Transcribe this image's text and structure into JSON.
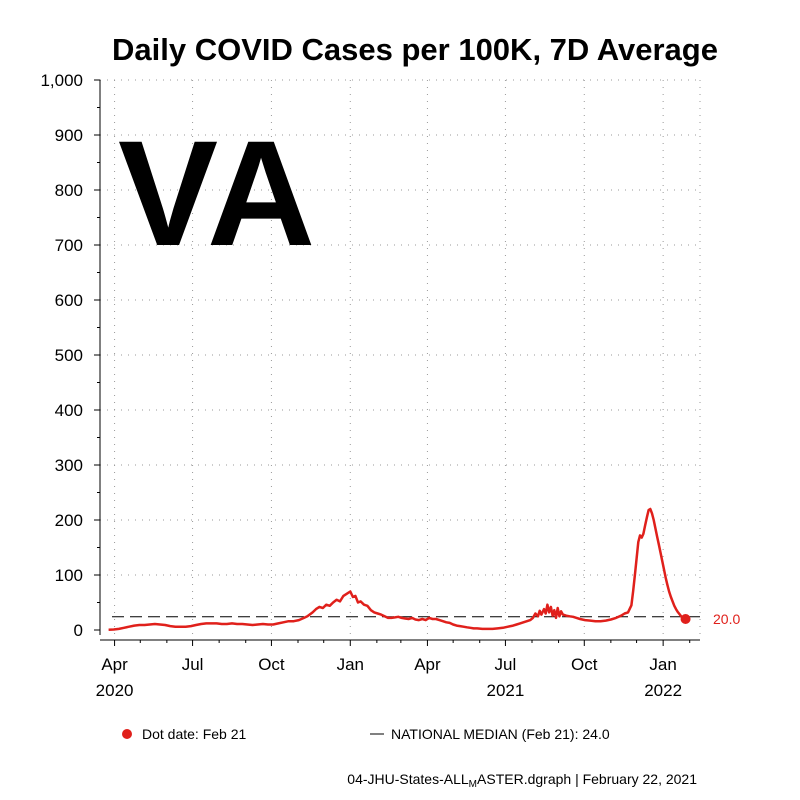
{
  "colors": {
    "series": "#e0201b",
    "axis": "#000000",
    "grid": "#9a9a9a"
  },
  "chart_data": {
    "type": "line",
    "title": "Daily COVID Cases per 100K, 7D Average",
    "state_label": "VA",
    "ylim": [
      0,
      1000
    ],
    "y_ticks": [
      0,
      100,
      200,
      300,
      400,
      500,
      600,
      700,
      800,
      900,
      1000
    ],
    "y_tick_labels": [
      "0",
      "100",
      "200",
      "300",
      "400",
      "500",
      "600",
      "700",
      "800",
      "900",
      "1,000"
    ],
    "x_domain_days": [
      0,
      700
    ],
    "x_ticks": [
      {
        "day": 17,
        "label": "Apr",
        "year": "2020"
      },
      {
        "day": 108,
        "label": "Jul",
        "year": ""
      },
      {
        "day": 200,
        "label": "Oct",
        "year": ""
      },
      {
        "day": 292,
        "label": "Jan",
        "year": ""
      },
      {
        "day": 382,
        "label": "Apr",
        "year": ""
      },
      {
        "day": 473,
        "label": "Jul",
        "year": "2021"
      },
      {
        "day": 565,
        "label": "Oct",
        "year": ""
      },
      {
        "day": 657,
        "label": "Jan",
        "year": "2022"
      }
    ],
    "minor_x_ticks": [
      47,
      78,
      139,
      170,
      231,
      261,
      323,
      351,
      412,
      443,
      504,
      535,
      596,
      626,
      688
    ],
    "national_median": 24.0,
    "last_value": 20.0,
    "last_value_label": "20.0",
    "series": [
      {
        "name": "VA",
        "points": [
          [
            10,
            0.5
          ],
          [
            16,
            1
          ],
          [
            22,
            2
          ],
          [
            28,
            4
          ],
          [
            34,
            6
          ],
          [
            40,
            8
          ],
          [
            46,
            9
          ],
          [
            52,
            9
          ],
          [
            58,
            10
          ],
          [
            64,
            11
          ],
          [
            70,
            10
          ],
          [
            76,
            9
          ],
          [
            82,
            7
          ],
          [
            88,
            6
          ],
          [
            94,
            6
          ],
          [
            100,
            6
          ],
          [
            106,
            7
          ],
          [
            112,
            9
          ],
          [
            118,
            11
          ],
          [
            124,
            12
          ],
          [
            130,
            12
          ],
          [
            136,
            12
          ],
          [
            142,
            11
          ],
          [
            148,
            11
          ],
          [
            154,
            12
          ],
          [
            160,
            11
          ],
          [
            166,
            11
          ],
          [
            172,
            10
          ],
          [
            178,
            9
          ],
          [
            184,
            10
          ],
          [
            190,
            11
          ],
          [
            196,
            10
          ],
          [
            202,
            10
          ],
          [
            208,
            12
          ],
          [
            214,
            14
          ],
          [
            220,
            16
          ],
          [
            226,
            16
          ],
          [
            232,
            18
          ],
          [
            238,
            22
          ],
          [
            242,
            25
          ],
          [
            248,
            32
          ],
          [
            252,
            38
          ],
          [
            256,
            42
          ],
          [
            260,
            40
          ],
          [
            264,
            46
          ],
          [
            268,
            44
          ],
          [
            272,
            50
          ],
          [
            276,
            55
          ],
          [
            280,
            52
          ],
          [
            284,
            62
          ],
          [
            288,
            66
          ],
          [
            292,
            70
          ],
          [
            295,
            60
          ],
          [
            298,
            62
          ],
          [
            301,
            50
          ],
          [
            304,
            52
          ],
          [
            308,
            46
          ],
          [
            312,
            44
          ],
          [
            316,
            36
          ],
          [
            320,
            32
          ],
          [
            324,
            30
          ],
          [
            328,
            28
          ],
          [
            332,
            25
          ],
          [
            336,
            22
          ],
          [
            340,
            22
          ],
          [
            344,
            23
          ],
          [
            348,
            24
          ],
          [
            352,
            22
          ],
          [
            356,
            21
          ],
          [
            360,
            20
          ],
          [
            364,
            22
          ],
          [
            368,
            19
          ],
          [
            372,
            18
          ],
          [
            376,
            20
          ],
          [
            380,
            18
          ],
          [
            384,
            22
          ],
          [
            388,
            20
          ],
          [
            392,
            20
          ],
          [
            396,
            18
          ],
          [
            400,
            16
          ],
          [
            404,
            14
          ],
          [
            408,
            13
          ],
          [
            412,
            10
          ],
          [
            416,
            8
          ],
          [
            420,
            7
          ],
          [
            424,
            6
          ],
          [
            428,
            5
          ],
          [
            432,
            4
          ],
          [
            436,
            3
          ],
          [
            440,
            3
          ],
          [
            446,
            2
          ],
          [
            452,
            2
          ],
          [
            458,
            2
          ],
          [
            464,
            3
          ],
          [
            470,
            4
          ],
          [
            476,
            6
          ],
          [
            482,
            8
          ],
          [
            486,
            10
          ],
          [
            490,
            12
          ],
          [
            494,
            14
          ],
          [
            498,
            16
          ],
          [
            502,
            18
          ],
          [
            505,
            22
          ],
          [
            508,
            30
          ],
          [
            511,
            25
          ],
          [
            513,
            35
          ],
          [
            515,
            28
          ],
          [
            518,
            38
          ],
          [
            520,
            30
          ],
          [
            522,
            46
          ],
          [
            524,
            32
          ],
          [
            526,
            42
          ],
          [
            528,
            26
          ],
          [
            530,
            36
          ],
          [
            532,
            22
          ],
          [
            534,
            40
          ],
          [
            536,
            25
          ],
          [
            538,
            34
          ],
          [
            540,
            28
          ],
          [
            544,
            26
          ],
          [
            548,
            25
          ],
          [
            552,
            24
          ],
          [
            556,
            22
          ],
          [
            560,
            20
          ],
          [
            566,
            18
          ],
          [
            572,
            17
          ],
          [
            578,
            16
          ],
          [
            584,
            16
          ],
          [
            590,
            17
          ],
          [
            596,
            19
          ],
          [
            602,
            22
          ],
          [
            608,
            26
          ],
          [
            612,
            30
          ],
          [
            616,
            32
          ],
          [
            620,
            45
          ],
          [
            622,
            70
          ],
          [
            624,
            100
          ],
          [
            626,
            130
          ],
          [
            628,
            160
          ],
          [
            630,
            172
          ],
          [
            632,
            168
          ],
          [
            634,
            175
          ],
          [
            636,
            190
          ],
          [
            638,
            205
          ],
          [
            640,
            218
          ],
          [
            642,
            220
          ],
          [
            644,
            212
          ],
          [
            646,
            200
          ],
          [
            648,
            185
          ],
          [
            650,
            170
          ],
          [
            652,
            155
          ],
          [
            654,
            140
          ],
          [
            656,
            125
          ],
          [
            658,
            110
          ],
          [
            660,
            95
          ],
          [
            662,
            82
          ],
          [
            664,
            70
          ],
          [
            666,
            60
          ],
          [
            668,
            52
          ],
          [
            670,
            44
          ],
          [
            672,
            38
          ],
          [
            674,
            33
          ],
          [
            676,
            29
          ],
          [
            678,
            25
          ],
          [
            680,
            22
          ],
          [
            682,
            20
          ]
        ]
      }
    ]
  },
  "legend": {
    "dot_label": "Dot date: Feb 21",
    "median_label": "NATIONAL MEDIAN (Feb 21): 24.0"
  },
  "footer": {
    "prefix": "04-JHU-States-ALL",
    "subscript": "M",
    "suffix": "ASTER.dgraph | February 22, 2021"
  }
}
